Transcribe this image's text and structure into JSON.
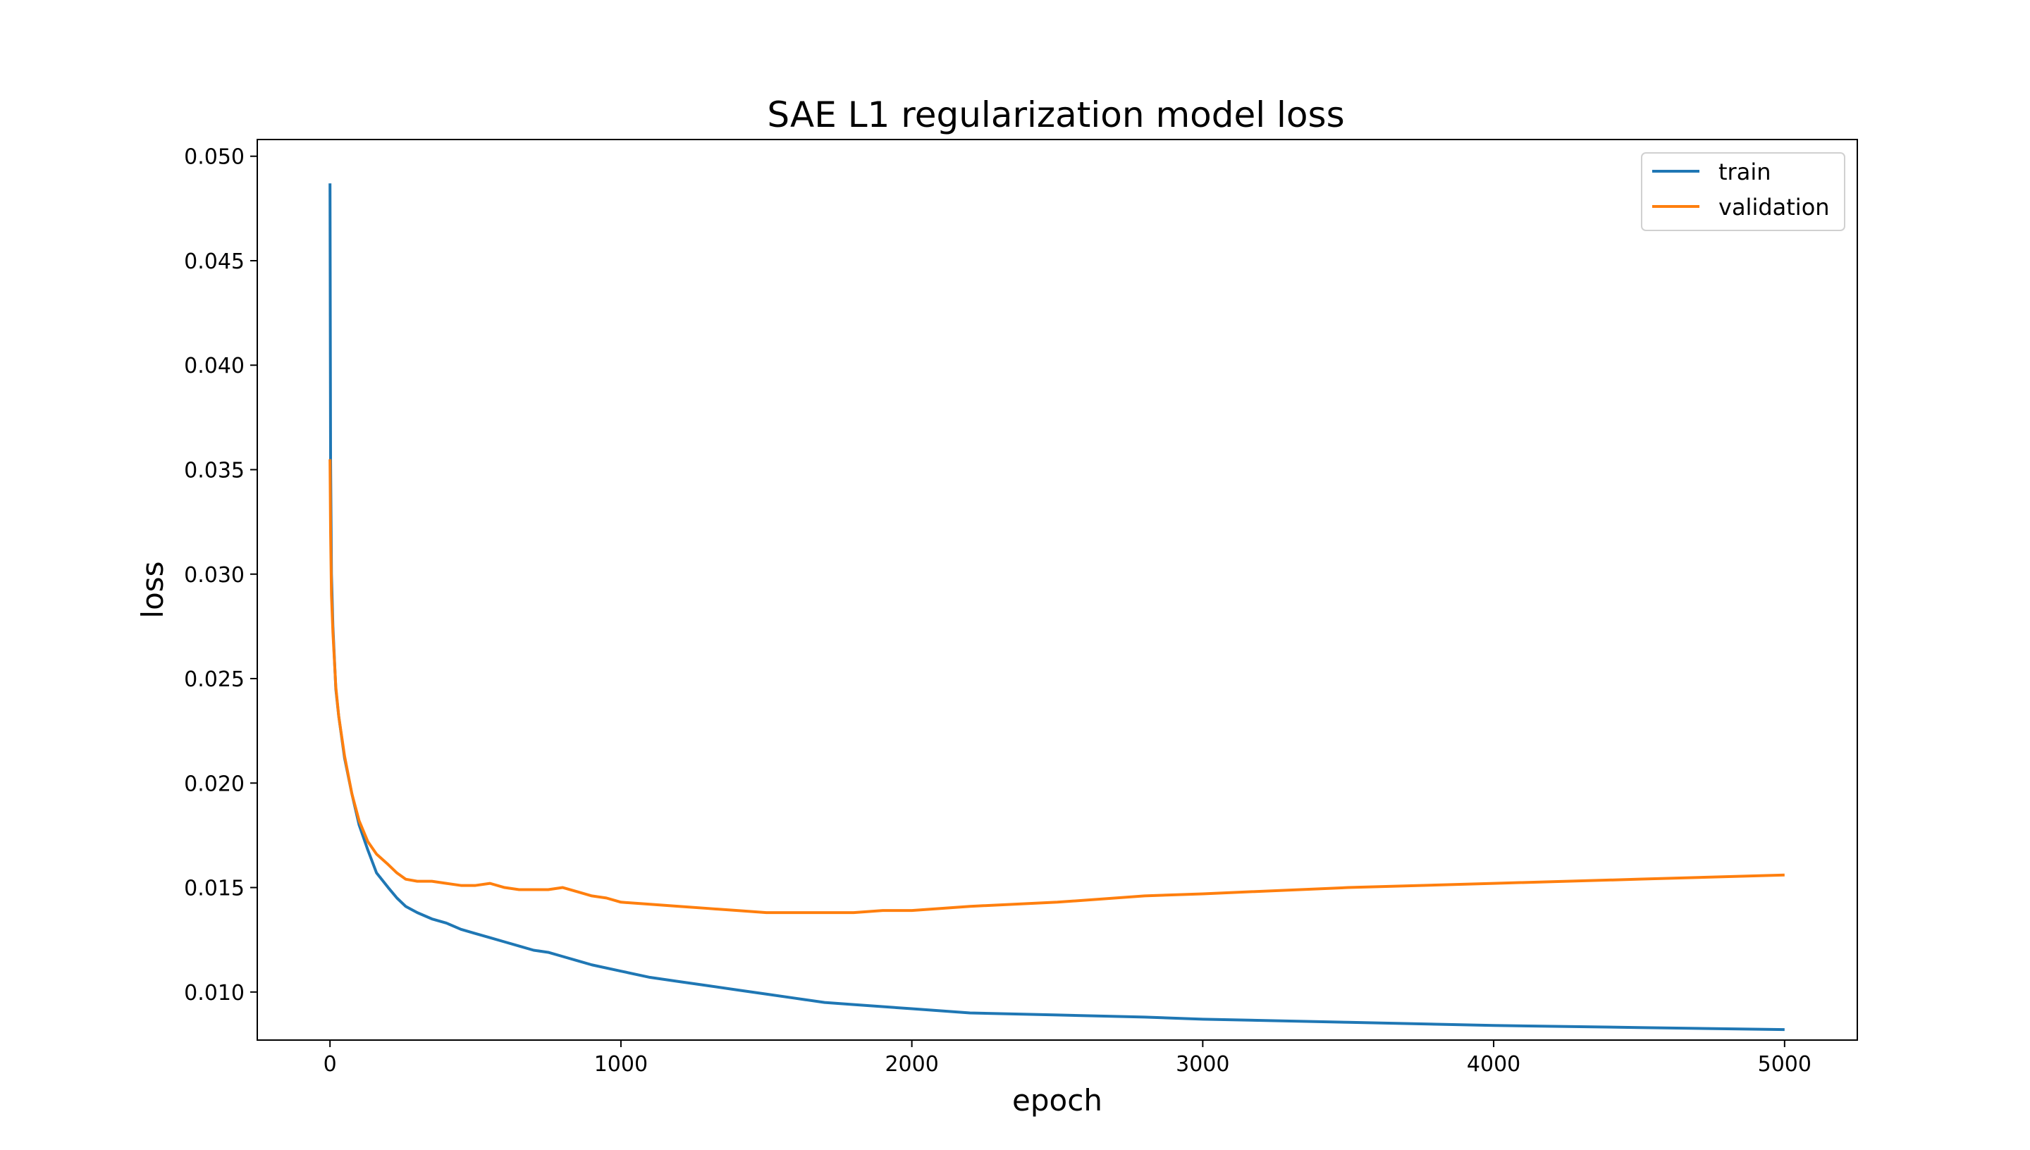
{
  "chart_data": {
    "type": "line",
    "title": "SAE L1 regularization model loss",
    "xlabel": "epoch",
    "ylabel": "loss",
    "xlim": [
      -250,
      5250
    ],
    "ylim": [
      0.0077,
      0.0508
    ],
    "xticks": [
      0,
      1000,
      2000,
      3000,
      4000,
      5000
    ],
    "xtick_labels": [
      "0",
      "1000",
      "2000",
      "3000",
      "4000",
      "5000"
    ],
    "yticks": [
      0.01,
      0.015,
      0.02,
      0.025,
      0.03,
      0.035,
      0.04,
      0.045,
      0.05
    ],
    "ytick_labels": [
      "0.010",
      "0.015",
      "0.020",
      "0.025",
      "0.030",
      "0.035",
      "0.040",
      "0.045",
      "0.050"
    ],
    "grid": false,
    "legend_position": "top-right",
    "series": [
      {
        "name": "train",
        "color": "#1f77b4",
        "points": [
          [
            0,
            0.0487
          ],
          [
            2,
            0.0355
          ],
          [
            5,
            0.03
          ],
          [
            10,
            0.0275
          ],
          [
            20,
            0.0245
          ],
          [
            30,
            0.0232
          ],
          [
            50,
            0.0212
          ],
          [
            75,
            0.0195
          ],
          [
            100,
            0.018
          ],
          [
            130,
            0.0168
          ],
          [
            160,
            0.0157
          ],
          [
            200,
            0.015
          ],
          [
            230,
            0.0145
          ],
          [
            260,
            0.0141
          ],
          [
            300,
            0.0138
          ],
          [
            350,
            0.0135
          ],
          [
            400,
            0.0133
          ],
          [
            450,
            0.013
          ],
          [
            500,
            0.0128
          ],
          [
            550,
            0.0126
          ],
          [
            600,
            0.0124
          ],
          [
            650,
            0.0122
          ],
          [
            700,
            0.012
          ],
          [
            750,
            0.0119
          ],
          [
            800,
            0.0117
          ],
          [
            850,
            0.0115
          ],
          [
            900,
            0.0113
          ],
          [
            1000,
            0.011
          ],
          [
            1100,
            0.0107
          ],
          [
            1200,
            0.0105
          ],
          [
            1300,
            0.0103
          ],
          [
            1400,
            0.0101
          ],
          [
            1500,
            0.0099
          ],
          [
            1600,
            0.0097
          ],
          [
            1700,
            0.0095
          ],
          [
            1800,
            0.0094
          ],
          [
            2000,
            0.0092
          ],
          [
            2200,
            0.009
          ],
          [
            2500,
            0.0089
          ],
          [
            2800,
            0.0088
          ],
          [
            3000,
            0.0087
          ],
          [
            3500,
            0.00855
          ],
          [
            4000,
            0.0084
          ],
          [
            4500,
            0.0083
          ],
          [
            5000,
            0.0082
          ]
        ]
      },
      {
        "name": "validation",
        "color": "#ff7f0e",
        "points": [
          [
            0,
            0.0355
          ],
          [
            2,
            0.032
          ],
          [
            5,
            0.029
          ],
          [
            10,
            0.0272
          ],
          [
            20,
            0.0246
          ],
          [
            30,
            0.0232
          ],
          [
            50,
            0.0213
          ],
          [
            75,
            0.0195
          ],
          [
            100,
            0.0182
          ],
          [
            130,
            0.0172
          ],
          [
            160,
            0.0166
          ],
          [
            200,
            0.0161
          ],
          [
            230,
            0.0157
          ],
          [
            260,
            0.0154
          ],
          [
            300,
            0.0153
          ],
          [
            350,
            0.0153
          ],
          [
            400,
            0.0152
          ],
          [
            450,
            0.0151
          ],
          [
            500,
            0.0151
          ],
          [
            550,
            0.0152
          ],
          [
            600,
            0.015
          ],
          [
            650,
            0.0149
          ],
          [
            700,
            0.0149
          ],
          [
            750,
            0.0149
          ],
          [
            800,
            0.015
          ],
          [
            850,
            0.0148
          ],
          [
            900,
            0.0146
          ],
          [
            950,
            0.0145
          ],
          [
            1000,
            0.0143
          ],
          [
            1100,
            0.0142
          ],
          [
            1200,
            0.0141
          ],
          [
            1300,
            0.014
          ],
          [
            1400,
            0.0139
          ],
          [
            1500,
            0.0138
          ],
          [
            1600,
            0.0138
          ],
          [
            1700,
            0.0138
          ],
          [
            1800,
            0.0138
          ],
          [
            1900,
            0.0139
          ],
          [
            2000,
            0.0139
          ],
          [
            2200,
            0.0141
          ],
          [
            2500,
            0.0143
          ],
          [
            2800,
            0.0146
          ],
          [
            3000,
            0.0147
          ],
          [
            3500,
            0.015
          ],
          [
            4000,
            0.0152
          ],
          [
            4500,
            0.0154
          ],
          [
            5000,
            0.0156
          ]
        ]
      }
    ]
  }
}
